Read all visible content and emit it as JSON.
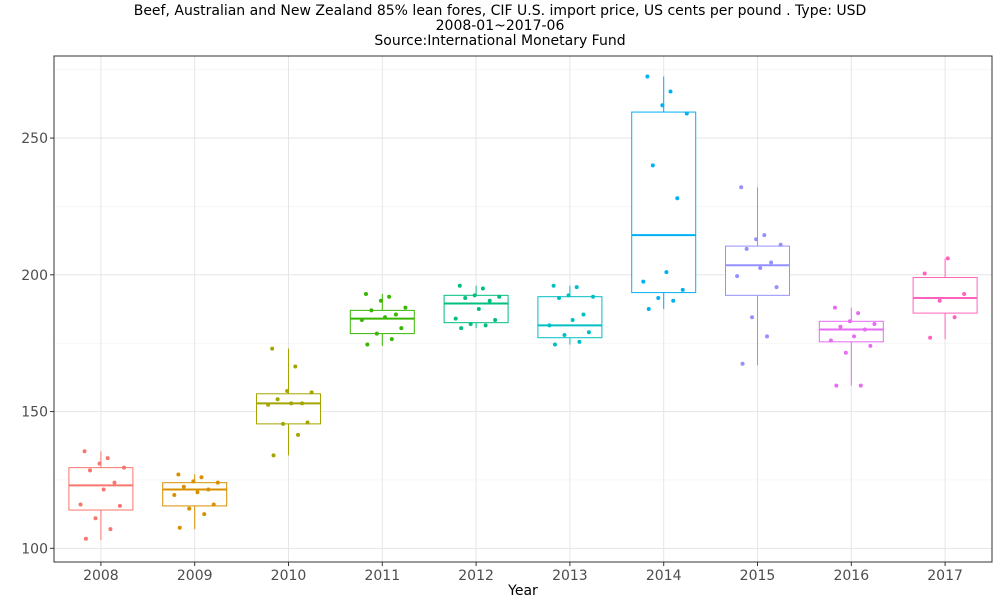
{
  "chart_data": {
    "type": "boxplot",
    "title_lines": [
      "Beef, Australian and New Zealand 85% lean fores, CIF U.S. import price, US cents per pound . Type: USD",
      "2008-01~2017-06",
      "Source:International Monetary Fund"
    ],
    "xlabel": "Year",
    "ylabel": "",
    "ylim": [
      95,
      280
    ],
    "y_ticks": [
      100,
      150,
      200,
      250
    ],
    "grid": true,
    "legend": "none",
    "categories": [
      "2008",
      "2009",
      "2010",
      "2011",
      "2012",
      "2013",
      "2014",
      "2015",
      "2016",
      "2017"
    ],
    "boxes": [
      {
        "category": "2008",
        "color": "#F8766D",
        "min": 103,
        "q1": 114,
        "median": 123,
        "q3": 129.5,
        "max": 135.5,
        "points": [
          103.5,
          107,
          111,
          115.5,
          116,
          121.5,
          124,
          128.5,
          129.5,
          131,
          133,
          135.5
        ]
      },
      {
        "category": "2009",
        "color": "#D89000",
        "min": 107,
        "q1": 115.5,
        "median": 121.5,
        "q3": 124,
        "max": 127,
        "points": [
          107.5,
          112.5,
          114.5,
          116,
          119.5,
          120.5,
          121.5,
          122.5,
          124,
          124.5,
          126,
          127
        ]
      },
      {
        "category": "2010",
        "color": "#A3A500",
        "min": 134,
        "q1": 145.5,
        "median": 153,
        "q3": 156.5,
        "max": 173,
        "points": [
          134,
          141.5,
          145.5,
          146,
          152.5,
          153,
          153,
          154.5,
          157,
          157.5,
          166.5,
          173
        ]
      },
      {
        "category": "2011",
        "color": "#39B600",
        "min": 174,
        "q1": 178.5,
        "median": 184,
        "q3": 187,
        "max": 193,
        "points": [
          174.5,
          176.5,
          178.5,
          180.5,
          183.5,
          184.5,
          185.5,
          187,
          188,
          190.5,
          192,
          193
        ]
      },
      {
        "category": "2012",
        "color": "#00BF7D",
        "min": 180.5,
        "q1": 182.5,
        "median": 189.5,
        "q3": 192.5,
        "max": 196,
        "points": [
          180.5,
          181.5,
          182,
          183.5,
          184,
          187.5,
          190.5,
          191.5,
          192,
          192.5,
          195,
          196
        ]
      },
      {
        "category": "2013",
        "color": "#00BFC4",
        "min": 174.5,
        "q1": 177,
        "median": 181.5,
        "q3": 192,
        "max": 196,
        "points": [
          174.5,
          175.5,
          178,
          179,
          181.5,
          183.5,
          185.5,
          191.5,
          192,
          192.5,
          195.5,
          196
        ]
      },
      {
        "category": "2014",
        "color": "#00B0F6",
        "min": 187.5,
        "q1": 193.5,
        "median": 214.5,
        "q3": 259.5,
        "max": 272.5,
        "points": [
          187.5,
          190.5,
          191.5,
          194.5,
          197.5,
          201,
          228,
          240,
          259,
          262,
          267,
          272.5
        ]
      },
      {
        "category": "2015",
        "color": "#9590FF",
        "min": 167,
        "q1": 192.5,
        "median": 203.5,
        "q3": 210.5,
        "max": 232,
        "points": [
          167.5,
          177.5,
          184.5,
          195.5,
          199.5,
          202.5,
          204.5,
          209.5,
          211,
          213,
          214.5,
          232
        ]
      },
      {
        "category": "2016",
        "color": "#E76BF3",
        "min": 159.5,
        "q1": 175.5,
        "median": 180,
        "q3": 183,
        "max": 188,
        "points": [
          159.5,
          159.5,
          171.5,
          174,
          176,
          177.5,
          180,
          181,
          182,
          183,
          186,
          188
        ]
      },
      {
        "category": "2017",
        "color": "#FF62BC",
        "min": 176.5,
        "q1": 186,
        "median": 191.5,
        "q3": 199,
        "max": 206,
        "points": [
          177,
          184.5,
          190.5,
          193,
          200.5,
          206
        ]
      }
    ]
  }
}
